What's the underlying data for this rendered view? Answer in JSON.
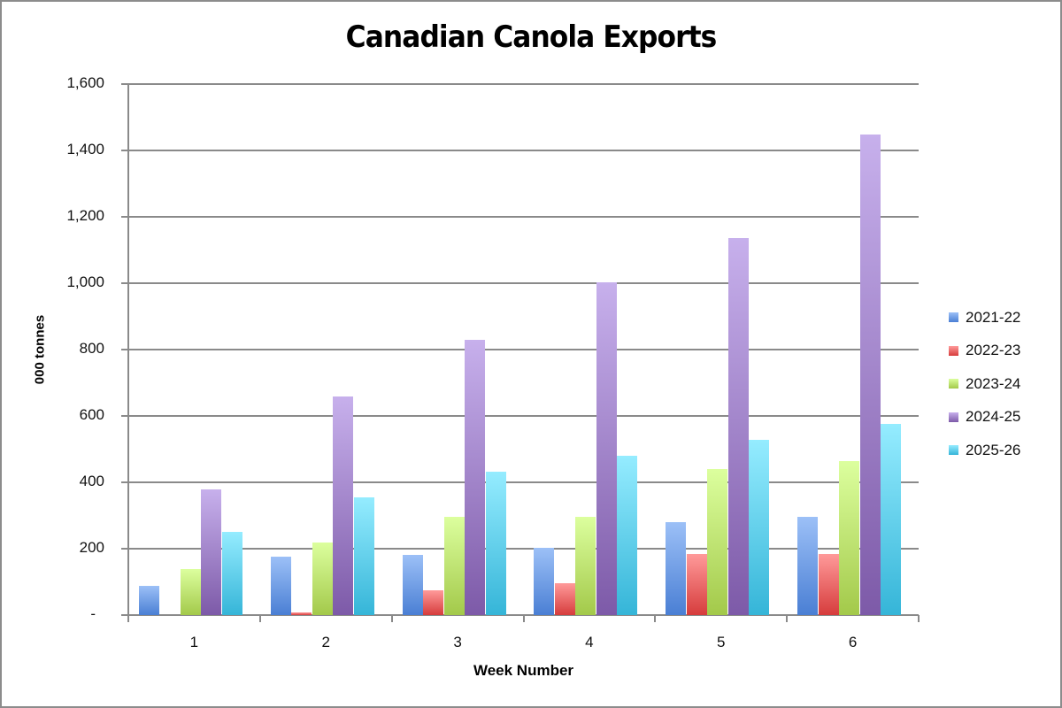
{
  "chart_data": {
    "type": "bar",
    "title": "Canadian Canola Exports",
    "xlabel": "Week Number",
    "ylabel": "000 tonnes",
    "ylim": [
      0,
      1600
    ],
    "yticks": [
      "-",
      "200",
      "400",
      "600",
      "800",
      "1,000",
      "1,200",
      "1,400",
      "1,600"
    ],
    "categories": [
      "1",
      "2",
      "3",
      "4",
      "5",
      "6"
    ],
    "grid": true,
    "legend_position": "right",
    "series": [
      {
        "name": "2021-22",
        "color": "#4a7fd4",
        "color_light": "#9cc0f7",
        "values": [
          89,
          175,
          182,
          203,
          280,
          295
        ]
      },
      {
        "name": "2022-23",
        "color": "#d63c3c",
        "color_light": "#ff9a9a",
        "values": [
          0,
          9,
          75,
          95,
          184,
          184
        ]
      },
      {
        "name": "2023-24",
        "color": "#a3c94a",
        "color_light": "#dcff9e",
        "values": [
          138,
          218,
          295,
          296,
          440,
          464
        ]
      },
      {
        "name": "2024-25",
        "color": "#7d5aa8",
        "color_light": "#c7b0ec",
        "values": [
          379,
          660,
          829,
          1004,
          1135,
          1448
        ]
      },
      {
        "name": "2025-26",
        "color": "#35b5d8",
        "color_light": "#95ecff",
        "values": [
          251,
          356,
          431,
          481,
          529,
          576
        ]
      }
    ]
  }
}
